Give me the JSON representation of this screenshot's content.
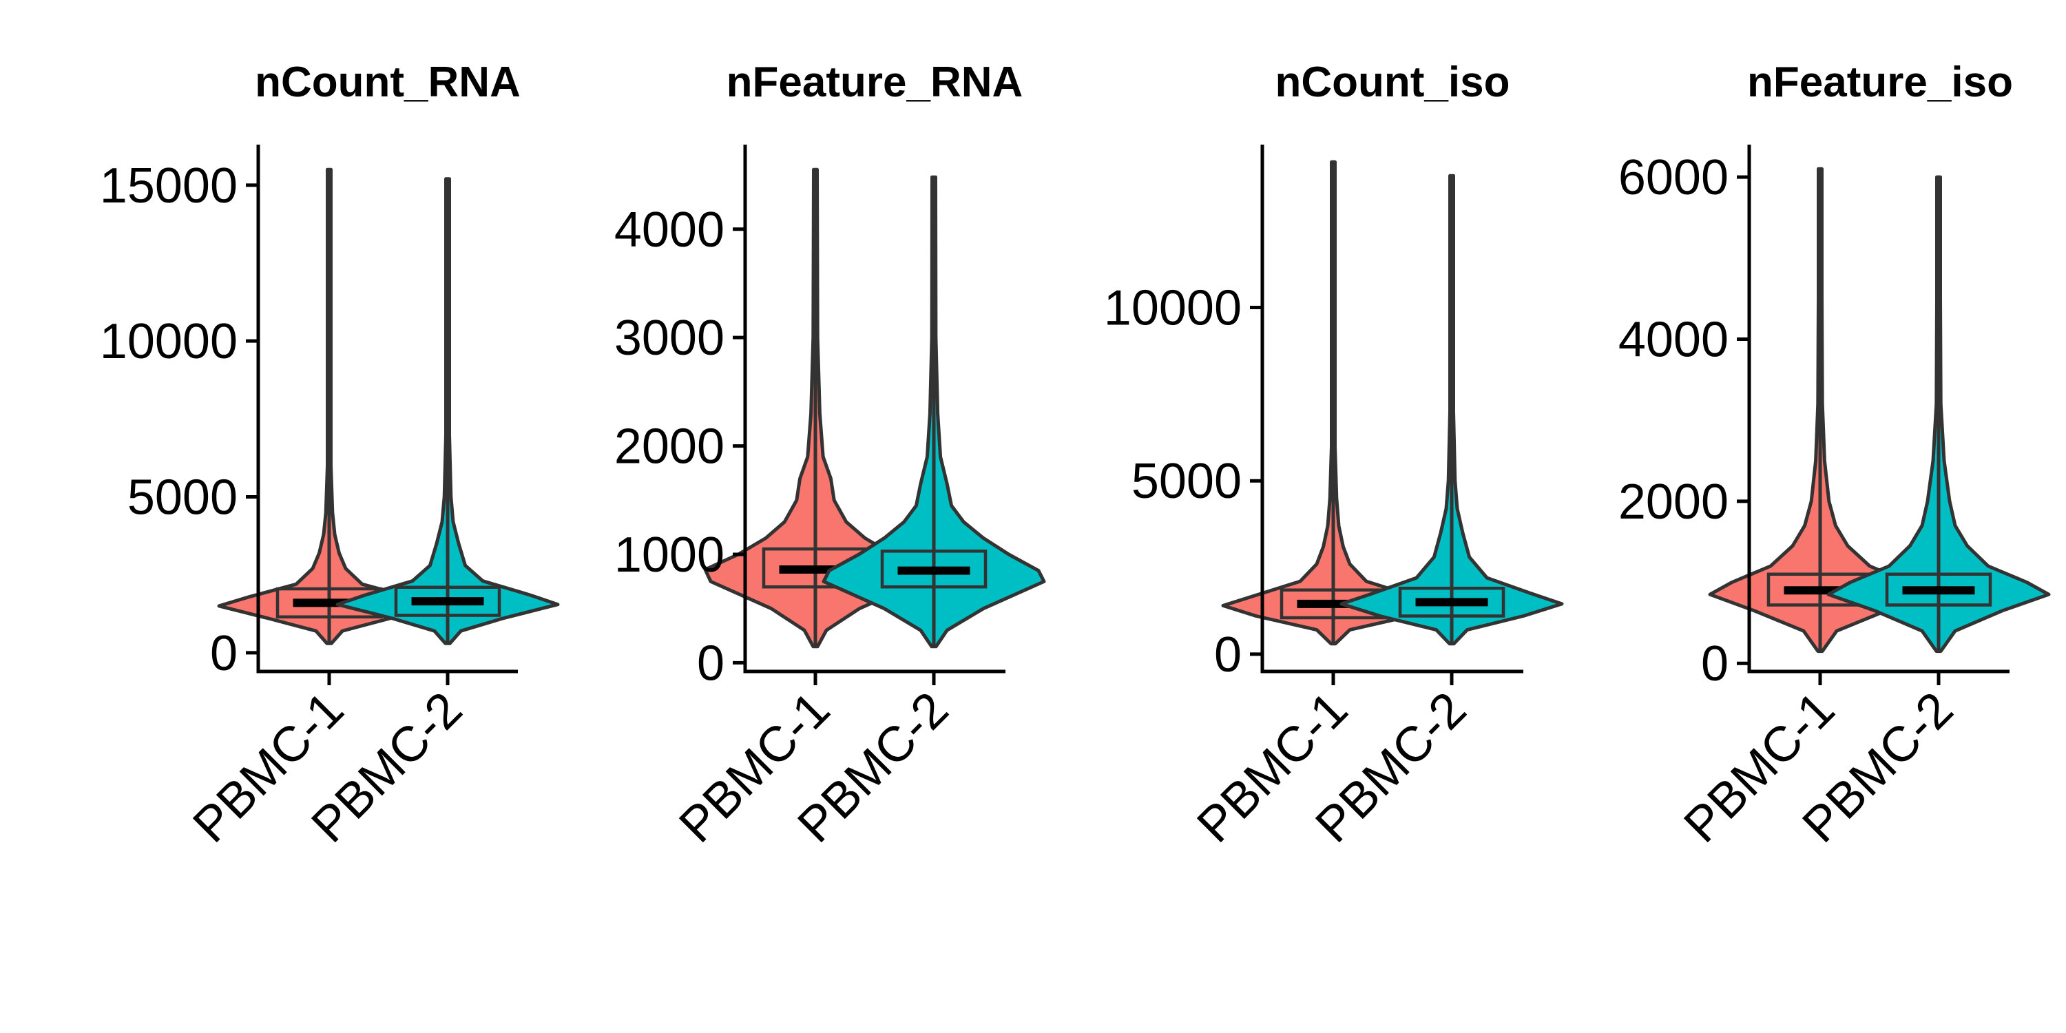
{
  "chart_data": [
    {
      "type": "violin",
      "title": "nCount_RNA",
      "categories": [
        "PBMC-1",
        "PBMC-2"
      ],
      "yticks": [
        0,
        5000,
        10000,
        15000
      ],
      "ylim": [
        -600,
        16300
      ],
      "series": [
        {
          "category": "PBMC-1",
          "color": "#F8766D",
          "min": 300,
          "q1": 1150,
          "median": 1600,
          "q3": 2050,
          "max": 15500,
          "profile": [
            [
              300,
              0.02
            ],
            [
              700,
              0.12
            ],
            [
              1100,
              0.55
            ],
            [
              1500,
              1.0
            ],
            [
              1800,
              0.72
            ],
            [
              2200,
              0.3
            ],
            [
              2700,
              0.15
            ],
            [
              3200,
              0.09
            ],
            [
              3800,
              0.05
            ],
            [
              4500,
              0.03
            ],
            [
              6000,
              0.015
            ],
            [
              9000,
              0.008
            ],
            [
              15500,
              0.004
            ]
          ]
        },
        {
          "category": "PBMC-2",
          "color": "#00BFC4",
          "min": 300,
          "q1": 1200,
          "median": 1650,
          "q3": 2100,
          "max": 15200,
          "profile": [
            [
              300,
              0.02
            ],
            [
              700,
              0.12
            ],
            [
              1100,
              0.5
            ],
            [
              1550,
              1.0
            ],
            [
              1850,
              0.75
            ],
            [
              2300,
              0.32
            ],
            [
              2800,
              0.16
            ],
            [
              3500,
              0.1
            ],
            [
              4200,
              0.05
            ],
            [
              5000,
              0.03
            ],
            [
              7000,
              0.015
            ],
            [
              10000,
              0.008
            ],
            [
              15200,
              0.004
            ]
          ]
        }
      ]
    },
    {
      "type": "violin",
      "title": "nFeature_RNA",
      "categories": [
        "PBMC-1",
        "PBMC-2"
      ],
      "yticks": [
        0,
        1000,
        2000,
        3000,
        4000
      ],
      "ylim": [
        -80,
        4780
      ],
      "series": [
        {
          "category": "PBMC-1",
          "color": "#F8766D",
          "min": 150,
          "q1": 700,
          "median": 860,
          "q3": 1050,
          "max": 4550,
          "profile": [
            [
              150,
              0.02
            ],
            [
              300,
              0.1
            ],
            [
              500,
              0.4
            ],
            [
              750,
              0.95
            ],
            [
              860,
              1.0
            ],
            [
              1000,
              0.7
            ],
            [
              1150,
              0.45
            ],
            [
              1300,
              0.28
            ],
            [
              1500,
              0.17
            ],
            [
              1700,
              0.14
            ],
            [
              1900,
              0.07
            ],
            [
              2300,
              0.04
            ],
            [
              3000,
              0.02
            ],
            [
              4550,
              0.005
            ]
          ]
        },
        {
          "category": "PBMC-2",
          "color": "#00BFC4",
          "min": 150,
          "q1": 700,
          "median": 850,
          "q3": 1030,
          "max": 4480,
          "profile": [
            [
              150,
              0.02
            ],
            [
              300,
              0.12
            ],
            [
              500,
              0.45
            ],
            [
              750,
              1.0
            ],
            [
              850,
              0.95
            ],
            [
              1000,
              0.68
            ],
            [
              1150,
              0.45
            ],
            [
              1300,
              0.27
            ],
            [
              1450,
              0.16
            ],
            [
              1650,
              0.12
            ],
            [
              1900,
              0.06
            ],
            [
              2300,
              0.035
            ],
            [
              3000,
              0.018
            ],
            [
              4480,
              0.005
            ]
          ]
        }
      ]
    },
    {
      "type": "violin",
      "title": "nCount_iso",
      "categories": [
        "PBMC-1",
        "PBMC-2"
      ],
      "yticks": [
        0,
        5000,
        10000
      ],
      "ylim": [
        -500,
        14700
      ],
      "series": [
        {
          "category": "PBMC-1",
          "color": "#F8766D",
          "min": 300,
          "q1": 1050,
          "median": 1450,
          "q3": 1850,
          "max": 14200,
          "profile": [
            [
              300,
              0.02
            ],
            [
              700,
              0.15
            ],
            [
              1100,
              0.7
            ],
            [
              1400,
              1.0
            ],
            [
              1700,
              0.7
            ],
            [
              2100,
              0.3
            ],
            [
              2600,
              0.15
            ],
            [
              3100,
              0.09
            ],
            [
              3700,
              0.05
            ],
            [
              4500,
              0.03
            ],
            [
              6000,
              0.015
            ],
            [
              9000,
              0.008
            ],
            [
              14200,
              0.004
            ]
          ]
        },
        {
          "category": "PBMC-2",
          "color": "#00BFC4",
          "min": 300,
          "q1": 1100,
          "median": 1500,
          "q3": 1900,
          "max": 13800,
          "profile": [
            [
              300,
              0.02
            ],
            [
              700,
              0.14
            ],
            [
              1100,
              0.65
            ],
            [
              1450,
              1.0
            ],
            [
              1750,
              0.72
            ],
            [
              2200,
              0.32
            ],
            [
              2800,
              0.16
            ],
            [
              3500,
              0.1
            ],
            [
              4200,
              0.05
            ],
            [
              5000,
              0.03
            ],
            [
              7000,
              0.015
            ],
            [
              10000,
              0.008
            ],
            [
              13800,
              0.004
            ]
          ]
        }
      ]
    },
    {
      "type": "violin",
      "title": "nFeature_iso",
      "categories": [
        "PBMC-1",
        "PBMC-2"
      ],
      "yticks": [
        0,
        2000,
        4000,
        6000
      ],
      "ylim": [
        -100,
        6400
      ],
      "series": [
        {
          "category": "PBMC-1",
          "color": "#F8766D",
          "min": 150,
          "q1": 720,
          "median": 900,
          "q3": 1100,
          "max": 6100,
          "profile": [
            [
              150,
              0.02
            ],
            [
              400,
              0.15
            ],
            [
              650,
              0.6
            ],
            [
              850,
              1.0
            ],
            [
              1000,
              0.8
            ],
            [
              1200,
              0.45
            ],
            [
              1450,
              0.25
            ],
            [
              1700,
              0.14
            ],
            [
              2000,
              0.08
            ],
            [
              2500,
              0.04
            ],
            [
              3200,
              0.02
            ],
            [
              4500,
              0.01
            ],
            [
              6100,
              0.004
            ]
          ]
        },
        {
          "category": "PBMC-2",
          "color": "#00BFC4",
          "min": 150,
          "q1": 720,
          "median": 900,
          "q3": 1100,
          "max": 6000,
          "profile": [
            [
              150,
              0.02
            ],
            [
              400,
              0.15
            ],
            [
              650,
              0.58
            ],
            [
              850,
              1.0
            ],
            [
              1000,
              0.8
            ],
            [
              1200,
              0.45
            ],
            [
              1450,
              0.26
            ],
            [
              1700,
              0.15
            ],
            [
              2000,
              0.1
            ],
            [
              2500,
              0.05
            ],
            [
              3200,
              0.02
            ],
            [
              4500,
              0.01
            ],
            [
              6000,
              0.004
            ]
          ]
        }
      ]
    }
  ]
}
